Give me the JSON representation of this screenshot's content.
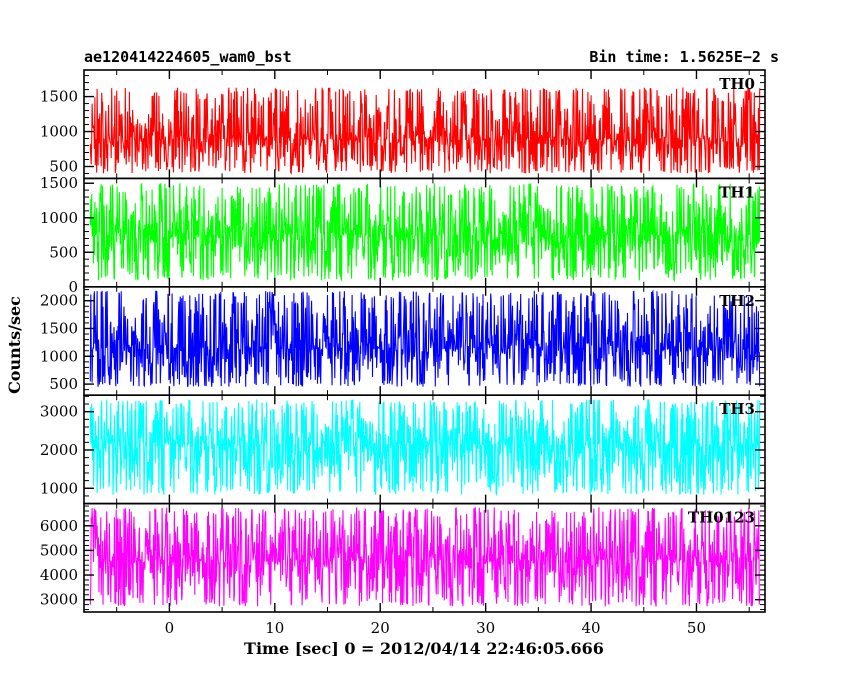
{
  "header": {
    "title": "ae120414224605_wam0_bst",
    "bin_time": "Bin time: 1.5625E−2 s"
  },
  "ylabel": "Counts/sec",
  "xlabel": "Time [sec] 0 = 2012/04/14 22:46:05.666",
  "chart_data": {
    "type": "line",
    "xlim": [
      -8.1,
      56.5
    ],
    "x_ticks": [
      0,
      10,
      20,
      30,
      40,
      50
    ],
    "x_tick_labels": [
      "0",
      "10",
      "20",
      "30",
      "40",
      "50"
    ],
    "data_x_range": [
      -7.5,
      56.0
    ],
    "grid": false,
    "panels": [
      {
        "label": "TH0",
        "color": "#ff0000",
        "ylim": [
          330,
          1880
        ],
        "y_ticks": [
          500,
          1000,
          1500
        ],
        "y_tick_labels": [
          "500",
          "1000",
          "1500"
        ],
        "mean": 900,
        "low": 400,
        "high": 1630
      },
      {
        "label": "TH1",
        "color": "#00ff00",
        "ylim": [
          0,
          1570
        ],
        "y_ticks": [
          0,
          500,
          1000,
          1500
        ],
        "y_tick_labels": [
          "0",
          "500",
          "1000",
          "1500"
        ],
        "mean": 750,
        "low": 90,
        "high": 1500
      },
      {
        "label": "TH2",
        "color": "#0000ff",
        "ylim": [
          300,
          2250
        ],
        "y_ticks": [
          500,
          1000,
          1500,
          2000
        ],
        "y_tick_labels": [
          "500",
          "1000",
          "1500",
          "2000"
        ],
        "mean": 1150,
        "low": 450,
        "high": 2180
      },
      {
        "label": "TH3",
        "color": "#00ffff",
        "ylim": [
          600,
          3430
        ],
        "y_ticks": [
          1000,
          2000,
          3000
        ],
        "y_tick_labels": [
          "1000",
          "2000",
          "3000"
        ],
        "mean": 2150,
        "low": 830,
        "high": 3320
      },
      {
        "label": "TH0123",
        "color": "#ff00ff",
        "ylim": [
          2500,
          6900
        ],
        "y_ticks": [
          3000,
          4000,
          5000,
          6000
        ],
        "y_tick_labels": [
          "3000",
          "4000",
          "5000",
          "6000"
        ],
        "mean": 4600,
        "low": 2720,
        "high": 6750
      }
    ]
  }
}
